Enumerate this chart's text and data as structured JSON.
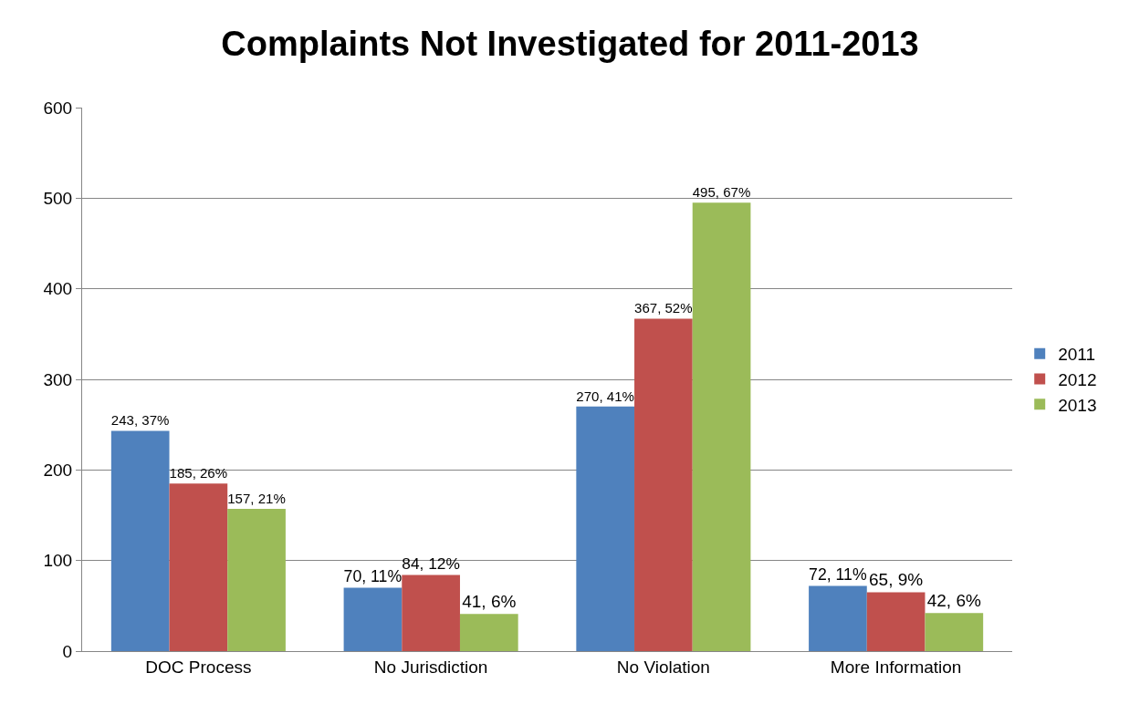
{
  "chart_data": {
    "type": "bar",
    "title": "Complaints Not Investigated for 2011-2013",
    "categories": [
      "DOC Process",
      "No Jurisdiction",
      "No Violation",
      "More Information"
    ],
    "series": [
      {
        "name": "2011",
        "color": "#4f81bd",
        "values": [
          243,
          70,
          270,
          72
        ],
        "value_labels": [
          "243, 37%",
          "70, 11%",
          "270, 41%",
          "72, 11%"
        ]
      },
      {
        "name": "2012",
        "color": "#c0504d",
        "values": [
          185,
          84,
          367,
          65
        ],
        "value_labels": [
          "185, 26%",
          "84, 12%",
          "367, 52%",
          "65, 9%"
        ]
      },
      {
        "name": "2013",
        "color": "#9bbb59",
        "values": [
          157,
          41,
          495,
          42
        ],
        "value_labels": [
          "157, 21%",
          "41, 6%",
          "495, 67%",
          "42, 6%"
        ]
      }
    ],
    "ylim": [
      0,
      600
    ],
    "yticks": [
      0,
      100,
      200,
      300,
      400,
      500,
      600
    ],
    "grid": "y",
    "legend": "right"
  }
}
